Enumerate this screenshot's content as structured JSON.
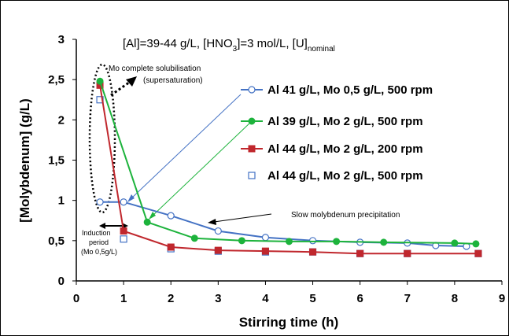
{
  "chart_data": {
    "type": "line",
    "title": "[Al]=39-44 g/L, [HNO",
    "title_sub": "3",
    "title_mid": "]=3 mol/L, [U]",
    "title_sub2": "nominal",
    "xlabel": "Stirring time (h)",
    "ylabel": "[Molybdenum]  (g/L)",
    "xlim": [
      0,
      9
    ],
    "ylim": [
      0,
      3
    ],
    "x_ticks": [
      "0",
      "1",
      "2",
      "3",
      "4",
      "5",
      "6",
      "7",
      "8",
      "9"
    ],
    "y_ticks": [
      "0",
      "0,5",
      "1",
      "1,5",
      "2",
      "2,5",
      "3"
    ],
    "grid": false,
    "legend_position": "right",
    "series": [
      {
        "name": "Al 41 g/L, Mo 0,5 g/L, 500 rpm",
        "color": "#4472c4",
        "marker": "circle-open",
        "line": true,
        "points": [
          [
            0.5,
            0.98
          ],
          [
            1.0,
            0.98
          ],
          [
            2.0,
            0.81
          ],
          [
            3.0,
            0.62
          ],
          [
            4.0,
            0.54
          ],
          [
            5.0,
            0.5
          ],
          [
            6.0,
            0.48
          ],
          [
            7.0,
            0.47
          ],
          [
            7.6,
            0.44
          ],
          [
            8.25,
            0.43
          ]
        ]
      },
      {
        "name": "Al 39 g/L, Mo 2 g/L, 500 rpm",
        "color": "#1db33c",
        "marker": "circle-filled",
        "line": true,
        "points": [
          [
            0.5,
            2.48
          ],
          [
            1.5,
            0.73
          ],
          [
            2.5,
            0.53
          ],
          [
            3.5,
            0.5
          ],
          [
            4.5,
            0.49
          ],
          [
            5.5,
            0.49
          ],
          [
            6.5,
            0.48
          ],
          [
            8.0,
            0.47
          ],
          [
            8.45,
            0.46
          ]
        ]
      },
      {
        "name": "Al 44 g/L, Mo 2 g/L, 200 rpm",
        "color": "#c0272d",
        "marker": "square-filled",
        "line": true,
        "points": [
          [
            0.5,
            2.43
          ],
          [
            1.0,
            0.62
          ],
          [
            2.0,
            0.42
          ],
          [
            3.0,
            0.38
          ],
          [
            4.0,
            0.37
          ],
          [
            5.0,
            0.36
          ],
          [
            6.0,
            0.34
          ],
          [
            7.0,
            0.34
          ],
          [
            8.5,
            0.34
          ]
        ]
      },
      {
        "name": "Al 44 g/L, Mo 2 g/L, 500 rpm",
        "color": "#4472c4",
        "marker": "square-open",
        "line": false,
        "points": [
          [
            0.5,
            2.25
          ],
          [
            1.0,
            0.52
          ],
          [
            2.0,
            0.4
          ],
          [
            3.0,
            0.37
          ],
          [
            4.0,
            0.36
          ],
          [
            5.0,
            0.36
          ],
          [
            6.0,
            0.34
          ],
          [
            7.0,
            0.34
          ],
          [
            8.5,
            0.34
          ]
        ]
      }
    ],
    "annotations": {
      "supersaturation_line1": "Mo complete solubilisation",
      "supersaturation_line2": "(supersaturation)",
      "slow_precipitation": "Slow molybdenum precipitation",
      "induction_line1": "Induction",
      "induction_line2": "period",
      "induction_line3": "(Mo 0,5g/L)"
    }
  }
}
